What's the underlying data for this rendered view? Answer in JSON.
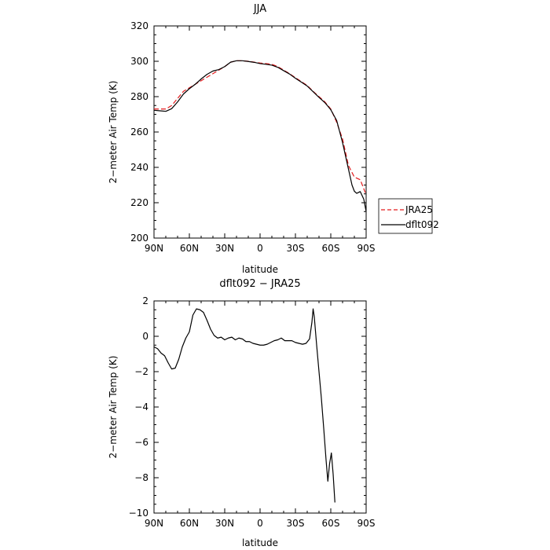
{
  "chart_data": [
    {
      "type": "line",
      "title": "JJA",
      "xlabel": "latitude",
      "ylabel": "2−meter Air Temp (K)",
      "xlim": [
        90,
        -90
      ],
      "ylim": [
        200,
        320
      ],
      "xticks": [
        {
          "value": 90,
          "label": "90N"
        },
        {
          "value": 60,
          "label": "60N"
        },
        {
          "value": 30,
          "label": "30N"
        },
        {
          "value": 0,
          "label": "0"
        },
        {
          "value": -30,
          "label": "30S"
        },
        {
          "value": -60,
          "label": "60S"
        },
        {
          "value": -90,
          "label": "90S"
        }
      ],
      "yticks": [
        200,
        220,
        240,
        260,
        280,
        300,
        320
      ],
      "legend": "right",
      "series": [
        {
          "name": "JRA25",
          "color": "#e31a1c",
          "style": "dashed",
          "points": [
            [
              90,
              273
            ],
            [
              80,
              273
            ],
            [
              75,
              275
            ],
            [
              70,
              279
            ],
            [
              65,
              283
            ],
            [
              60,
              285
            ],
            [
              55,
              287
            ],
            [
              50,
              289
            ],
            [
              45,
              291
            ],
            [
              40,
              293
            ],
            [
              35,
              295
            ],
            [
              30,
              297
            ],
            [
              25,
              299.5
            ],
            [
              20,
              300.3
            ],
            [
              15,
              300.3
            ],
            [
              10,
              300
            ],
            [
              5,
              299.5
            ],
            [
              0,
              299
            ],
            [
              -5,
              298.7
            ],
            [
              -10,
              298.3
            ],
            [
              -15,
              297
            ],
            [
              -20,
              295
            ],
            [
              -25,
              293
            ],
            [
              -30,
              290.7
            ],
            [
              -35,
              288.5
            ],
            [
              -40,
              286.3
            ],
            [
              -45,
              283
            ],
            [
              -50,
              280
            ],
            [
              -55,
              277
            ],
            [
              -60,
              273
            ],
            [
              -65,
              265.5
            ],
            [
              -70,
              256
            ],
            [
              -72,
              250
            ],
            [
              -75,
              241
            ],
            [
              -80,
              234.5
            ],
            [
              -85,
              233
            ],
            [
              -90,
              224.5
            ]
          ]
        },
        {
          "name": "dflt092",
          "color": "#000000",
          "style": "solid",
          "points": [
            [
              90,
              272.3
            ],
            [
              85,
              272
            ],
            [
              80,
              271.7
            ],
            [
              75,
              273.2
            ],
            [
              70,
              277
            ],
            [
              65,
              281.5
            ],
            [
              60,
              284.5
            ],
            [
              55,
              287
            ],
            [
              50,
              290
            ],
            [
              45,
              292.6
            ],
            [
              40,
              294.5
            ],
            [
              35,
              295.3
            ],
            [
              30,
              297
            ],
            [
              25,
              299.5
            ],
            [
              20,
              300.3
            ],
            [
              15,
              300.3
            ],
            [
              10,
              299.9
            ],
            [
              5,
              299.4
            ],
            [
              0,
              298.7
            ],
            [
              -5,
              298.3
            ],
            [
              -10,
              297.8
            ],
            [
              -15,
              296.6
            ],
            [
              -20,
              294.7
            ],
            [
              -25,
              292.8
            ],
            [
              -30,
              290.4
            ],
            [
              -35,
              288.2
            ],
            [
              -40,
              286
            ],
            [
              -45,
              282.8
            ],
            [
              -50,
              279.6
            ],
            [
              -55,
              276.6
            ],
            [
              -60,
              272.6
            ],
            [
              -65,
              266.5
            ],
            [
              -70,
              254
            ],
            [
              -75,
              239
            ],
            [
              -78,
              230
            ],
            [
              -80,
              226.5
            ],
            [
              -82,
              225.3
            ],
            [
              -85,
              226.3
            ],
            [
              -88,
              222
            ],
            [
              -90,
              215
            ]
          ]
        }
      ]
    },
    {
      "type": "line",
      "title": "dflt092 − JRA25",
      "xlabel": "latitude",
      "ylabel": "2−meter Air Temp (K)",
      "xlim": [
        90,
        -90
      ],
      "ylim": [
        -10,
        2
      ],
      "xticks": [
        {
          "value": 90,
          "label": "90N"
        },
        {
          "value": 60,
          "label": "60N"
        },
        {
          "value": 30,
          "label": "30N"
        },
        {
          "value": 0,
          "label": "0"
        },
        {
          "value": -30,
          "label": "30S"
        },
        {
          "value": -60,
          "label": "60S"
        },
        {
          "value": -90,
          "label": "90S"
        }
      ],
      "yticks": [
        -10,
        -8,
        -6,
        -4,
        -2,
        0,
        2
      ],
      "series": [
        {
          "color": "#000000",
          "style": "solid",
          "points": [
            [
              90,
              -0.6
            ],
            [
              87,
              -0.7
            ],
            [
              84,
              -0.95
            ],
            [
              81,
              -1.1
            ],
            [
              78,
              -1.5
            ],
            [
              75,
              -1.85
            ],
            [
              72,
              -1.8
            ],
            [
              69,
              -1.3
            ],
            [
              66,
              -0.6
            ],
            [
              63,
              -0.1
            ],
            [
              60,
              0.25
            ],
            [
              57,
              1.2
            ],
            [
              54,
              1.55
            ],
            [
              51,
              1.5
            ],
            [
              48,
              1.35
            ],
            [
              45,
              0.9
            ],
            [
              42,
              0.4
            ],
            [
              39,
              0.05
            ],
            [
              36,
              -0.1
            ],
            [
              33,
              -0.05
            ],
            [
              30,
              -0.2
            ],
            [
              27,
              -0.1
            ],
            [
              24,
              -0.05
            ],
            [
              21,
              -0.2
            ],
            [
              18,
              -0.1
            ],
            [
              15,
              -0.15
            ],
            [
              12,
              -0.3
            ],
            [
              9,
              -0.3
            ],
            [
              6,
              -0.4
            ],
            [
              3,
              -0.45
            ],
            [
              0,
              -0.5
            ],
            [
              -3,
              -0.5
            ],
            [
              -6,
              -0.45
            ],
            [
              -9,
              -0.35
            ],
            [
              -12,
              -0.25
            ],
            [
              -15,
              -0.2
            ],
            [
              -18,
              -0.1
            ],
            [
              -21,
              -0.25
            ],
            [
              -24,
              -0.25
            ],
            [
              -27,
              -0.25
            ],
            [
              -30,
              -0.35
            ],
            [
              -33,
              -0.4
            ],
            [
              -36,
              -0.45
            ],
            [
              -39,
              -0.4
            ],
            [
              -42,
              -0.15
            ],
            [
              -44,
              0.8
            ],
            [
              -45,
              1.55
            ],
            [
              -46,
              1.1
            ],
            [
              -48,
              -0.5
            ],
            [
              -50,
              -2
            ],
            [
              -52,
              -3.5
            ],
            [
              -54,
              -5.2
            ],
            [
              -56,
              -7
            ],
            [
              -57.5,
              -8.2
            ],
            [
              -59,
              -7.2
            ],
            [
              -60.5,
              -6.6
            ],
            [
              -62,
              -7.8
            ],
            [
              -63.5,
              -9.4
            ]
          ]
        }
      ]
    }
  ]
}
